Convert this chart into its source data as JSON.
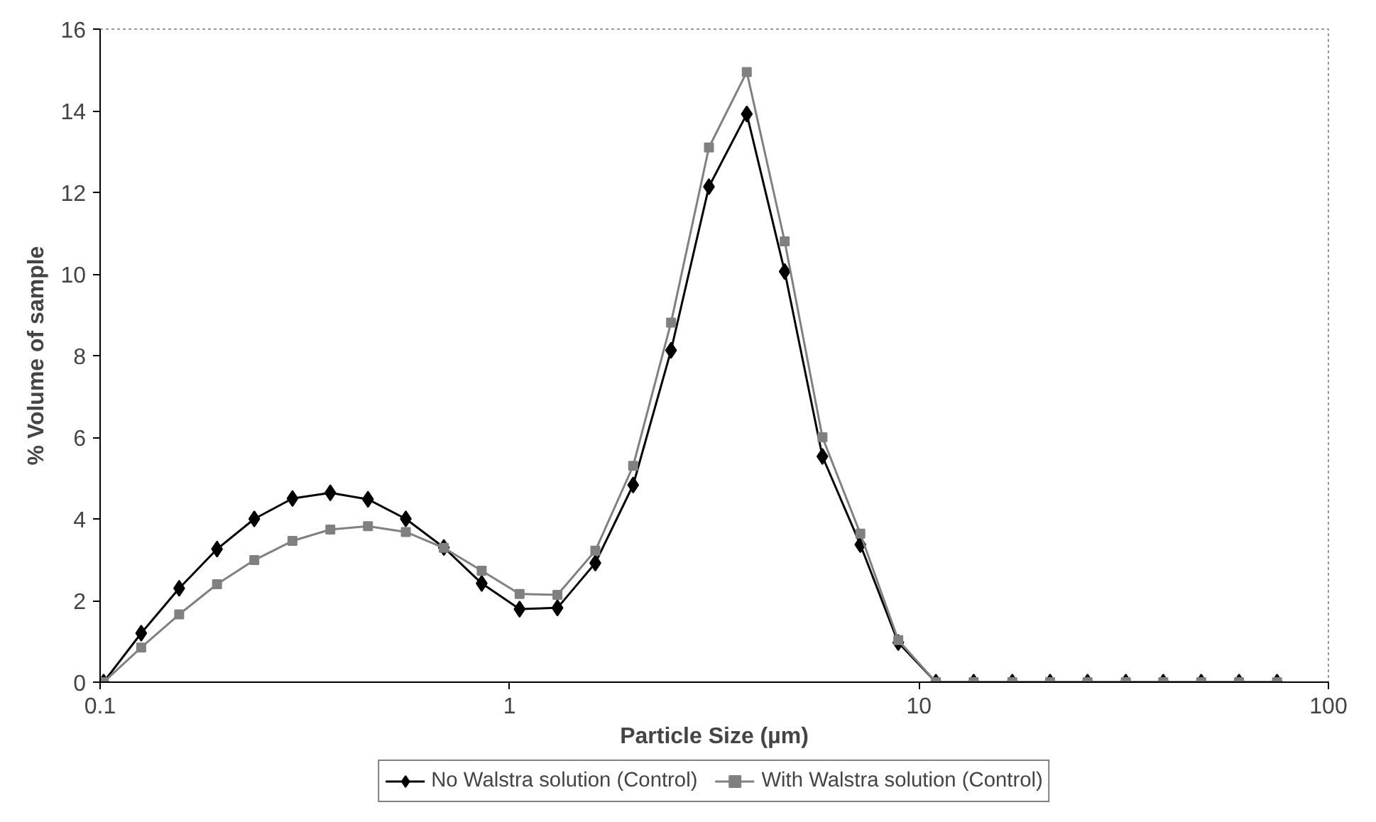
{
  "chart_data": {
    "type": "line",
    "xlabel": "Particle Size (µm)",
    "ylabel": "% Volume of sample",
    "log": "x",
    "xlim": [
      0.1,
      100
    ],
    "ylim": [
      0,
      16
    ],
    "xticks": [
      0.1,
      1,
      10,
      100
    ],
    "yticks": [
      0,
      2,
      4,
      6,
      8,
      10,
      12,
      14,
      16
    ],
    "grid": false,
    "legend": "bottom",
    "line_style": "solid",
    "x": [
      0.102,
      0.126,
      0.156,
      0.193,
      0.238,
      0.295,
      0.365,
      0.451,
      0.558,
      0.691,
      0.855,
      1.058,
      1.309,
      1.62,
      2.004,
      2.48,
      3.069,
      3.797,
      4.699,
      5.81,
      7.19,
      8.9,
      11.0,
      13.6,
      16.9,
      20.9,
      25.8,
      32.0,
      39.5,
      48.9,
      60.5,
      74.9
    ],
    "series": [
      {
        "name": "No Walstra solution (Control)",
        "color": "#000000",
        "marker": "diamond",
        "values": [
          0,
          1.2,
          2.3,
          3.26,
          4.0,
          4.5,
          4.64,
          4.48,
          4.0,
          3.3,
          2.42,
          1.79,
          1.82,
          2.92,
          4.83,
          8.13,
          12.14,
          13.92,
          10.06,
          5.53,
          3.37,
          0.97,
          0,
          0,
          0,
          0,
          0,
          0,
          0,
          0,
          0,
          0
        ]
      },
      {
        "name": "With Walstra solution (Control)",
        "color": "#808080",
        "marker": "square",
        "values": [
          0,
          0.85,
          1.66,
          2.4,
          2.99,
          3.46,
          3.74,
          3.82,
          3.68,
          3.29,
          2.73,
          2.16,
          2.14,
          3.22,
          5.3,
          8.81,
          13.1,
          14.95,
          10.8,
          6.0,
          3.64,
          1.03,
          0,
          0,
          0,
          0,
          0,
          0,
          0,
          0,
          0,
          0
        ]
      }
    ]
  }
}
